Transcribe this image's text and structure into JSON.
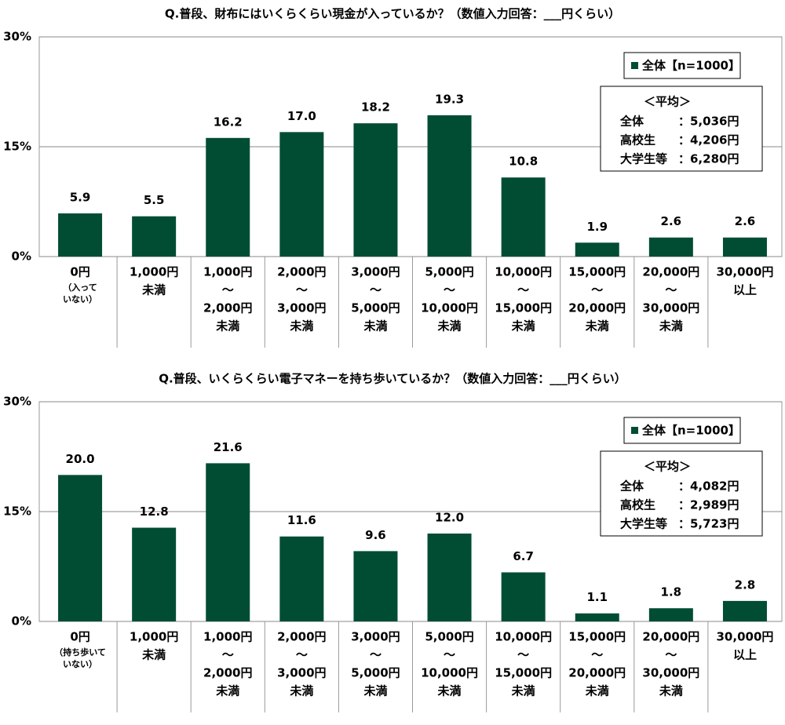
{
  "chart_data": [
    {
      "type": "bar",
      "title": "Q.普段、財布にはいくらくらい現金が入っているか？（数値入力回答：___円くらい）",
      "categories": [
        [
          "0円",
          "（入って",
          "いない）"
        ],
        [
          "1,000円",
          "未満"
        ],
        [
          "1,000円",
          "～",
          "2,000円",
          "未満"
        ],
        [
          "2,000円",
          "～",
          "3,000円",
          "未満"
        ],
        [
          "3,000円",
          "～",
          "5,000円",
          "未満"
        ],
        [
          "5,000円",
          "～",
          "10,000円",
          "未満"
        ],
        [
          "10,000円",
          "～",
          "15,000円",
          "未満"
        ],
        [
          "15,000円",
          "～",
          "20,000円",
          "未満"
        ],
        [
          "20,000円",
          "～",
          "30,000円",
          "未満"
        ],
        [
          "30,000円",
          "以上"
        ]
      ],
      "series": [
        {
          "name": "全体【n=1000】",
          "color": "#004d33",
          "values": [
            5.9,
            5.5,
            16.2,
            17.0,
            18.2,
            19.3,
            10.8,
            1.9,
            2.6,
            2.6
          ],
          "value_labels": [
            "5.9",
            "5.5",
            "16.2",
            "17.0",
            "18.2",
            "19.3",
            "10.8",
            "1.9",
            "2.6",
            "2.6"
          ]
        }
      ],
      "ylim": [
        0,
        30
      ],
      "yticks": [
        {
          "value": 0,
          "label": "0%"
        },
        {
          "value": 15,
          "label": "15%"
        },
        {
          "value": 30,
          "label": "30%"
        }
      ],
      "grid": true,
      "averages": {
        "title": "＜平均＞",
        "rows": [
          [
            "全体",
            "：5,036円"
          ],
          [
            "高校生",
            "：4,206円"
          ],
          [
            "大学生等",
            "：6,280円"
          ]
        ]
      }
    },
    {
      "type": "bar",
      "title": "Q.普段、いくらくらい電子マネーを持ち歩いているか？（数値入力回答：___円くらい）",
      "categories": [
        [
          "0円",
          "（持ち歩いて",
          "いない）"
        ],
        [
          "1,000円",
          "未満"
        ],
        [
          "1,000円",
          "～",
          "2,000円",
          "未満"
        ],
        [
          "2,000円",
          "～",
          "3,000円",
          "未満"
        ],
        [
          "3,000円",
          "～",
          "5,000円",
          "未満"
        ],
        [
          "5,000円",
          "～",
          "10,000円",
          "未満"
        ],
        [
          "10,000円",
          "～",
          "15,000円",
          "未満"
        ],
        [
          "15,000円",
          "～",
          "20,000円",
          "未満"
        ],
        [
          "20,000円",
          "～",
          "30,000円",
          "未満"
        ],
        [
          "30,000円",
          "以上"
        ]
      ],
      "series": [
        {
          "name": "全体【n=1000】",
          "color": "#004d33",
          "values": [
            20.0,
            12.8,
            21.6,
            11.6,
            9.6,
            12.0,
            6.7,
            1.1,
            1.8,
            2.8
          ],
          "value_labels": [
            "20.0",
            "12.8",
            "21.6",
            "11.6",
            "9.6",
            "12.0",
            "6.7",
            "1.1",
            "1.8",
            "2.8"
          ]
        }
      ],
      "ylim": [
        0,
        30
      ],
      "yticks": [
        {
          "value": 0,
          "label": "0%"
        },
        {
          "value": 15,
          "label": "15%"
        },
        {
          "value": 30,
          "label": "30%"
        }
      ],
      "grid": true,
      "averages": {
        "title": "＜平均＞",
        "rows": [
          [
            "全体",
            "：4,082円"
          ],
          [
            "高校生",
            "：2,989円"
          ],
          [
            "大学生等",
            "：5,723円"
          ]
        ]
      }
    }
  ]
}
